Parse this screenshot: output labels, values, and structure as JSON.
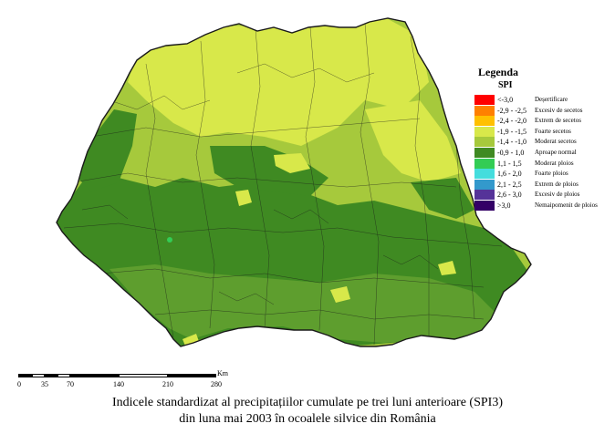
{
  "legend": {
    "title": "Legenda",
    "subtitle": "SPI",
    "items": [
      {
        "range": "<-3,0",
        "label": "Deșertificare",
        "color": "#ff0000"
      },
      {
        "range": "-2,9 - -2,5",
        "label": "Excesiv de secetos",
        "color": "#ff8000"
      },
      {
        "range": "-2,4 - -2,0",
        "label": "Extrem de secetos",
        "color": "#ffc000"
      },
      {
        "range": "-1,9 - -1,5",
        "label": "Foarte secetos",
        "color": "#d8e84a"
      },
      {
        "range": "-1,4 - -1,0",
        "label": "Moderat secetos",
        "color": "#a6c93c"
      },
      {
        "range": "-0,9 - 1,0",
        "label": "Aproape normal",
        "color": "#3f8a22"
      },
      {
        "range": "1,1 - 1,5",
        "label": "Moderat ploios",
        "color": "#33cc55"
      },
      {
        "range": "1,6 - 2,0",
        "label": "Foarte ploios",
        "color": "#44dddd"
      },
      {
        "range": "2,1 - 2,5",
        "label": "Extrem de ploios",
        "color": "#3399cc"
      },
      {
        "range": "2,6 - 3,0",
        "label": "Excesiv de ploios",
        "color": "#553399"
      },
      {
        "range": ">3,0",
        "label": "Nemaipomenit de ploios",
        "color": "#330066"
      }
    ]
  },
  "scale": {
    "unit": "Km",
    "ticks": [
      "0",
      "35",
      "70",
      "140",
      "210",
      "280"
    ]
  },
  "caption": {
    "line1": "Indicele standardizat al precipitațiilor cumulate pe trei luni anterioare (SPI3)",
    "line2": "din luna mai 2003 în ocoalele silvice din România"
  },
  "colors": {
    "normal": "#3f8a22",
    "moderate_dry": "#a6c93c",
    "very_dry": "#d8e84a",
    "border": "#1a1a1a"
  }
}
